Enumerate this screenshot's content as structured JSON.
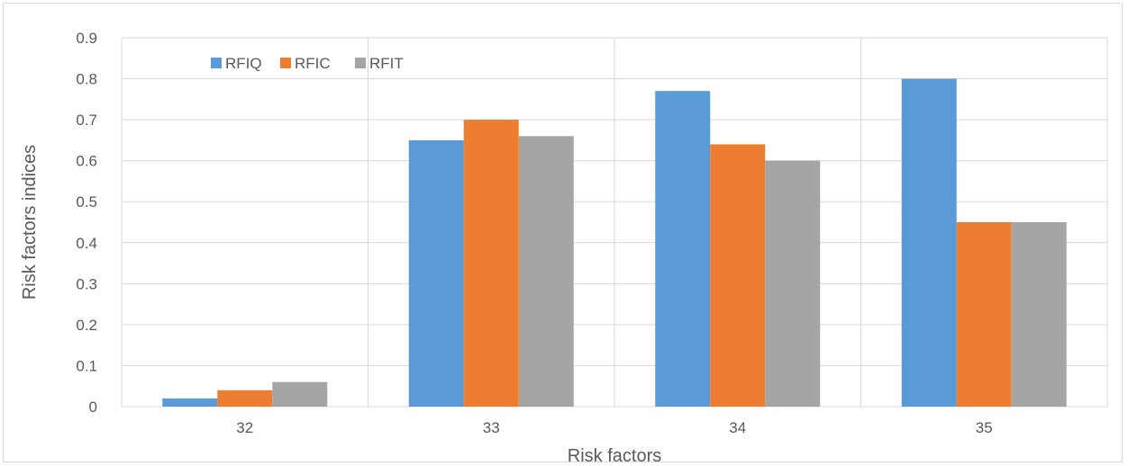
{
  "chart_data": {
    "type": "bar",
    "title": "",
    "xlabel": "Risk factors",
    "ylabel": "Risk factors indices",
    "categories": [
      "32",
      "33",
      "34",
      "35"
    ],
    "series": [
      {
        "name": "RFIQ",
        "color": "#5b9bd5",
        "values": [
          0.02,
          0.65,
          0.77,
          0.8
        ]
      },
      {
        "name": "RFIC",
        "color": "#ed7d31",
        "values": [
          0.04,
          0.7,
          0.64,
          0.45
        ]
      },
      {
        "name": "RFIT",
        "color": "#a5a5a5",
        "values": [
          0.06,
          0.66,
          0.6,
          0.45
        ]
      }
    ],
    "ylim": [
      0,
      0.9
    ],
    "yticks": [
      "0",
      "0.1",
      "0.2",
      "0.3",
      "0.4",
      "0.5",
      "0.6",
      "0.7",
      "0.8",
      "0.9"
    ],
    "grid": true,
    "legend_position": "top-left"
  }
}
